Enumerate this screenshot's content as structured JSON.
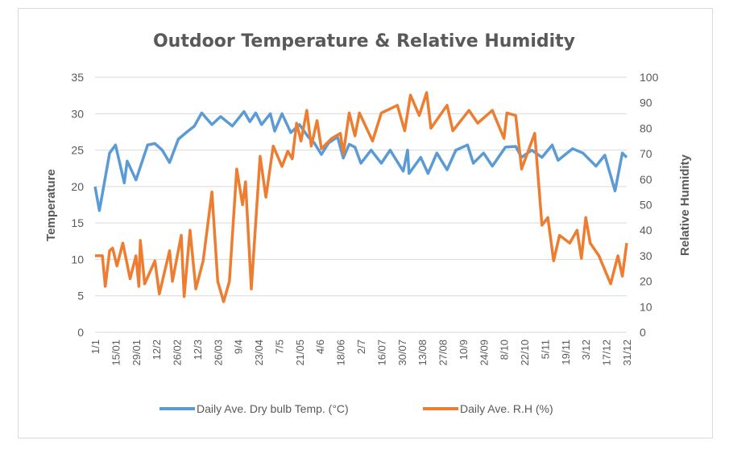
{
  "chart_data": {
    "type": "line",
    "title": "Outdoor Temperature & Relative Humidity",
    "xlabel": "",
    "ylabel": "Temperature",
    "y2label": "Relative Humidity",
    "ylim": [
      0,
      35
    ],
    "y2lim": [
      0,
      100
    ],
    "yticks": [
      0,
      5,
      10,
      15,
      20,
      25,
      30,
      35
    ],
    "y2ticks": [
      0,
      10,
      20,
      30,
      40,
      50,
      60,
      70,
      80,
      90,
      100
    ],
    "x_unit": "day of year (0 = 1/1)",
    "xlim": [
      0,
      364
    ],
    "categories": [
      "1/1",
      "15/01",
      "29/01",
      "12/2",
      "26/02",
      "12/3",
      "26/03",
      "9/4",
      "23/04",
      "7/5",
      "21/05",
      "4/6",
      "18/06",
      "2/7",
      "16/07",
      "30/07",
      "13/08",
      "27/08",
      "10/9",
      "24/09",
      "8/10",
      "22/10",
      "5/11",
      "19/11",
      "3/12",
      "17/12",
      "31/12"
    ],
    "category_step_days": 14,
    "grid": true,
    "legend_position": "bottom",
    "series": [
      {
        "name": "Daily Ave. Dry bulb Temp. (°C)",
        "axis": "left",
        "color": "#5B9BD5",
        "points": [
          [
            0,
            20
          ],
          [
            3,
            16.7
          ],
          [
            10,
            24.6
          ],
          [
            14,
            25.7
          ],
          [
            20,
            20.5
          ],
          [
            22,
            23.5
          ],
          [
            28,
            20.9
          ],
          [
            36,
            25.7
          ],
          [
            41,
            25.9
          ],
          [
            46,
            25
          ],
          [
            51,
            23.3
          ],
          [
            57,
            26.5
          ],
          [
            63,
            27.5
          ],
          [
            68,
            28.3
          ],
          [
            73,
            30.1
          ],
          [
            80,
            28.5
          ],
          [
            86,
            29.6
          ],
          [
            94,
            28.3
          ],
          [
            102,
            30.3
          ],
          [
            106,
            28.9
          ],
          [
            110,
            30.1
          ],
          [
            114,
            28.5
          ],
          [
            120,
            30
          ],
          [
            123,
            27.6
          ],
          [
            128,
            30
          ],
          [
            134,
            27.4
          ],
          [
            140,
            28.5
          ],
          [
            146,
            26.8
          ],
          [
            150,
            26
          ],
          [
            155,
            24.4
          ],
          [
            160,
            26
          ],
          [
            166,
            26.8
          ],
          [
            170,
            23.9
          ],
          [
            174,
            25.8
          ],
          [
            178,
            25.4
          ],
          [
            182,
            23.2
          ],
          [
            189,
            25
          ],
          [
            196,
            23.2
          ],
          [
            202,
            25
          ],
          [
            211,
            22.1
          ],
          [
            214,
            25
          ],
          [
            215,
            21.8
          ],
          [
            223,
            24
          ],
          [
            228,
            21.8
          ],
          [
            234,
            24.6
          ],
          [
            241,
            22.3
          ],
          [
            247,
            25
          ],
          [
            255,
            25.7
          ],
          [
            259,
            23.2
          ],
          [
            266,
            24.6
          ],
          [
            272,
            22.8
          ],
          [
            281,
            25.4
          ],
          [
            288,
            25.5
          ],
          [
            292,
            24
          ],
          [
            299,
            25
          ],
          [
            306,
            24
          ],
          [
            313,
            25.7
          ],
          [
            317,
            23.6
          ],
          [
            327,
            25.2
          ],
          [
            334,
            24.6
          ],
          [
            339,
            23.6
          ],
          [
            343,
            22.8
          ],
          [
            349,
            24.3
          ],
          [
            353,
            21.5
          ],
          [
            356,
            19.4
          ],
          [
            361,
            24.6
          ],
          [
            364,
            24
          ]
        ]
      },
      {
        "name": "Daily Ave. R.H (%)",
        "axis": "right",
        "color": "#ED7D31",
        "points": [
          [
            0,
            30
          ],
          [
            5,
            30
          ],
          [
            7,
            18
          ],
          [
            10,
            32
          ],
          [
            12,
            33
          ],
          [
            15,
            26
          ],
          [
            19,
            35
          ],
          [
            24,
            21
          ],
          [
            28,
            30
          ],
          [
            30,
            18
          ],
          [
            31,
            36
          ],
          [
            34,
            19
          ],
          [
            41,
            28
          ],
          [
            44,
            15
          ],
          [
            51,
            32
          ],
          [
            53,
            20
          ],
          [
            59,
            38
          ],
          [
            61,
            14
          ],
          [
            65,
            40
          ],
          [
            69,
            17
          ],
          [
            74,
            28
          ],
          [
            80,
            55
          ],
          [
            84,
            20
          ],
          [
            88,
            12
          ],
          [
            92,
            20
          ],
          [
            97,
            64
          ],
          [
            101,
            50
          ],
          [
            103,
            59
          ],
          [
            107,
            17
          ],
          [
            113,
            69
          ],
          [
            117,
            53
          ],
          [
            122,
            73
          ],
          [
            128,
            65
          ],
          [
            132,
            71
          ],
          [
            135,
            68
          ],
          [
            138,
            82
          ],
          [
            141,
            75
          ],
          [
            145,
            87
          ],
          [
            148,
            73
          ],
          [
            152,
            83
          ],
          [
            155,
            72
          ],
          [
            162,
            76
          ],
          [
            168,
            78
          ],
          [
            170,
            70
          ],
          [
            174,
            86
          ],
          [
            178,
            77
          ],
          [
            181,
            86
          ],
          [
            190,
            75
          ],
          [
            196,
            86
          ],
          [
            207,
            89
          ],
          [
            212,
            79
          ],
          [
            216,
            93
          ],
          [
            222,
            85
          ],
          [
            227,
            94
          ],
          [
            230,
            80
          ],
          [
            241,
            89
          ],
          [
            245,
            79
          ],
          [
            256,
            87
          ],
          [
            262,
            82
          ],
          [
            272,
            87
          ],
          [
            280,
            76
          ],
          [
            282,
            86
          ],
          [
            288,
            85
          ],
          [
            292,
            64
          ],
          [
            301,
            78
          ],
          [
            306,
            42
          ],
          [
            310,
            45
          ],
          [
            314,
            28
          ],
          [
            318,
            38
          ],
          [
            325,
            35
          ],
          [
            330,
            40
          ],
          [
            333,
            29
          ],
          [
            336,
            45
          ],
          [
            339,
            35
          ],
          [
            345,
            30
          ],
          [
            353,
            19
          ],
          [
            358,
            30
          ],
          [
            361,
            22
          ],
          [
            364,
            35
          ]
        ]
      }
    ]
  }
}
